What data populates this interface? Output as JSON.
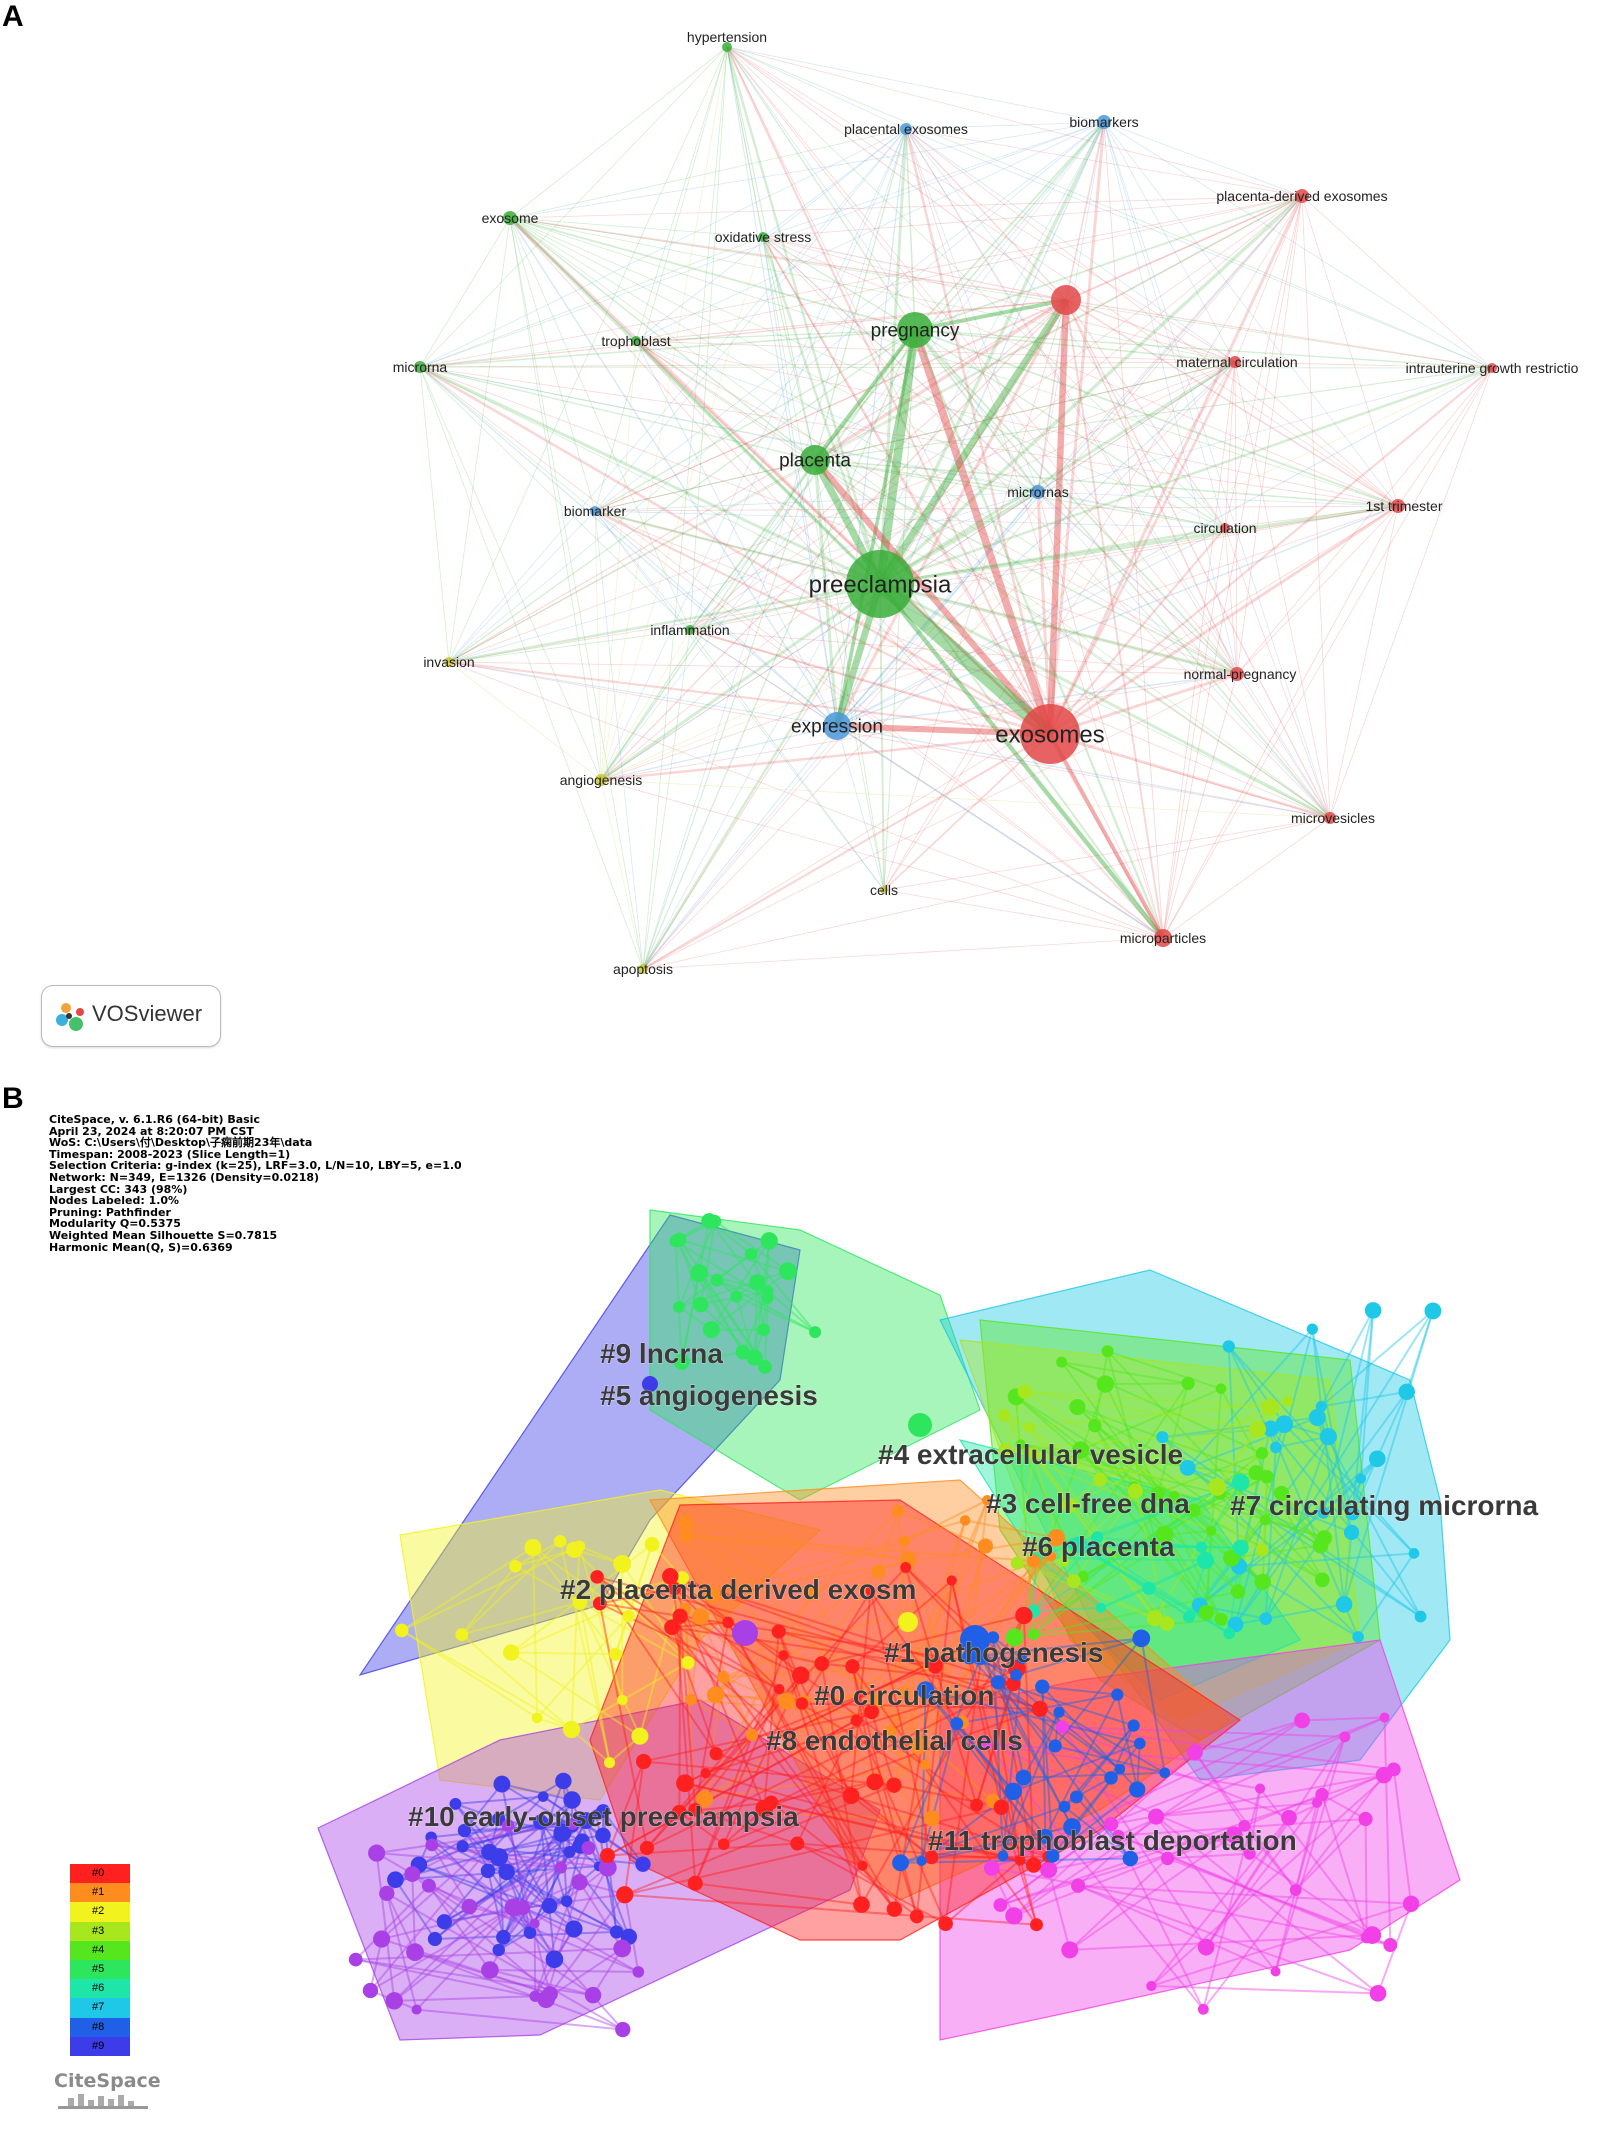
{
  "panel_a": {
    "letter": "A",
    "brand": "VOSviewer",
    "nodes": [
      {
        "id": "hypertension",
        "label": "hypertension",
        "cluster": "green",
        "size": 5
      },
      {
        "id": "placental-exosomes",
        "label": "placental exosomes",
        "cluster": "blue",
        "size": 6
      },
      {
        "id": "biomarkers",
        "label": "biomarkers",
        "cluster": "blue",
        "size": 7
      },
      {
        "id": "placenta-derived-exosomes",
        "label": "placenta-derived exosomes",
        "cluster": "red",
        "size": 7
      },
      {
        "id": "exosome",
        "label": "exosome",
        "cluster": "green",
        "size": 7
      },
      {
        "id": "oxidative-stress",
        "label": "oxidative stress",
        "cluster": "green",
        "size": 5
      },
      {
        "id": "unlabeled-red",
        "label": "",
        "cluster": "red",
        "size": 15
      },
      {
        "id": "pregnancy",
        "label": "pregnancy",
        "cluster": "green",
        "size": 18
      },
      {
        "id": "trophoblast",
        "label": "trophoblast",
        "cluster": "green",
        "size": 5
      },
      {
        "id": "maternal-circulation",
        "label": "maternal circulation",
        "cluster": "red",
        "size": 6
      },
      {
        "id": "intrauterine-growth-restriction",
        "label": "intrauterine growth restrictio",
        "cluster": "red",
        "size": 5
      },
      {
        "id": "microrna",
        "label": "microrna",
        "cluster": "green",
        "size": 6
      },
      {
        "id": "placenta",
        "label": "placenta",
        "cluster": "green",
        "size": 15
      },
      {
        "id": "micrornas",
        "label": "micrornas",
        "cluster": "blue",
        "size": 7
      },
      {
        "id": "1st-trimester",
        "label": "1st trimester",
        "cluster": "red",
        "size": 7
      },
      {
        "id": "biomarker",
        "label": "biomarker",
        "cluster": "blue",
        "size": 5
      },
      {
        "id": "circulation",
        "label": "circulation",
        "cluster": "red",
        "size": 5
      },
      {
        "id": "preeclampsia",
        "label": "preeclampsia",
        "cluster": "green",
        "size": 34
      },
      {
        "id": "inflammation",
        "label": "inflammation",
        "cluster": "green",
        "size": 5
      },
      {
        "id": "invasion",
        "label": "invasion",
        "cluster": "yellow",
        "size": 5
      },
      {
        "id": "normal-pregnancy",
        "label": "normal-pregnancy",
        "cluster": "red",
        "size": 7
      },
      {
        "id": "expression",
        "label": "expression",
        "cluster": "blue",
        "size": 14
      },
      {
        "id": "exosomes",
        "label": "exosomes",
        "cluster": "red",
        "size": 30
      },
      {
        "id": "angiogenesis",
        "label": "angiogenesis",
        "cluster": "yellow",
        "size": 6
      },
      {
        "id": "microvesicles",
        "label": "microvesicles",
        "cluster": "red",
        "size": 6
      },
      {
        "id": "cells",
        "label": "cells",
        "cluster": "yellow",
        "size": 4
      },
      {
        "id": "microparticles",
        "label": "microparticles",
        "cluster": "red",
        "size": 9
      },
      {
        "id": "apoptosis",
        "label": "apoptosis",
        "cluster": "yellow",
        "size": 5
      }
    ],
    "colors": {
      "green": "#3aae3a",
      "blue": "#4a98d8",
      "red": "#e34848",
      "yellow": "#c8c832"
    }
  },
  "panel_b": {
    "letter": "B",
    "info_lines": [
      "CiteSpace, v. 6.1.R6 (64-bit) Basic",
      "April 23, 2024 at 8:20:07 PM CST",
      "WoS: C:\\Users\\付\\Desktop\\子痫前期23年\\data",
      "Timespan: 2008-2023 (Slice Length=1)",
      "Selection Criteria: g-index (k=25), LRF=3.0, L/N=10, LBY=5, e=1.0",
      "Network: N=349, E=1326 (Density=0.0218)",
      "Largest CC: 343 (98%)",
      "Nodes Labeled: 1.0%",
      "Pruning: Pathfinder",
      "Modularity Q=0.5375",
      "Weighted Mean Silhouette S=0.7815",
      "Harmonic Mean(Q, S)=0.6369"
    ],
    "clusters": [
      {
        "id": "c9",
        "label": "#9 lncrna",
        "color": "#3c3ce8"
      },
      {
        "id": "c5",
        "label": "#5 angiogenesis",
        "color": "#2ee65e"
      },
      {
        "id": "c4",
        "label": "#4 extracellular vesicle",
        "color": "#56e61e"
      },
      {
        "id": "c3",
        "label": "#3 cell-free dna",
        "color": "#a8e61e"
      },
      {
        "id": "c7",
        "label": "#7 circulating microrna",
        "color": "#1ec8e6"
      },
      {
        "id": "c6",
        "label": "#6 placenta",
        "color": "#1ee6a8"
      },
      {
        "id": "c2",
        "label": "#2 placenta derived exosm",
        "color": "#f2f21e"
      },
      {
        "id": "c1",
        "label": "#1 pathogenesis",
        "color": "#ff8c1e"
      },
      {
        "id": "c0",
        "label": "#0 circulation",
        "color": "#ff2020"
      },
      {
        "id": "c8",
        "label": "#8 endothelial cells",
        "color": "#2060e6"
      },
      {
        "id": "c10",
        "label": "#10 early-onset preeclampsia",
        "color": "#a840e6"
      },
      {
        "id": "c11",
        "label": "#11 trophoblast deportation",
        "color": "#f040e6"
      }
    ],
    "legend": [
      {
        "label": "#0",
        "color": "#ff2020"
      },
      {
        "label": "#1",
        "color": "#ff8c1e"
      },
      {
        "label": "#2",
        "color": "#f2f21e"
      },
      {
        "label": "#3",
        "color": "#a8e61e"
      },
      {
        "label": "#4",
        "color": "#56e61e"
      },
      {
        "label": "#5",
        "color": "#2ee65e"
      },
      {
        "label": "#6",
        "color": "#1ee6a8"
      },
      {
        "label": "#7",
        "color": "#1ec8e6"
      },
      {
        "label": "#8",
        "color": "#2060e6"
      },
      {
        "label": "#9",
        "color": "#3c3ce8"
      }
    ],
    "brand": "CiteSpace"
  }
}
